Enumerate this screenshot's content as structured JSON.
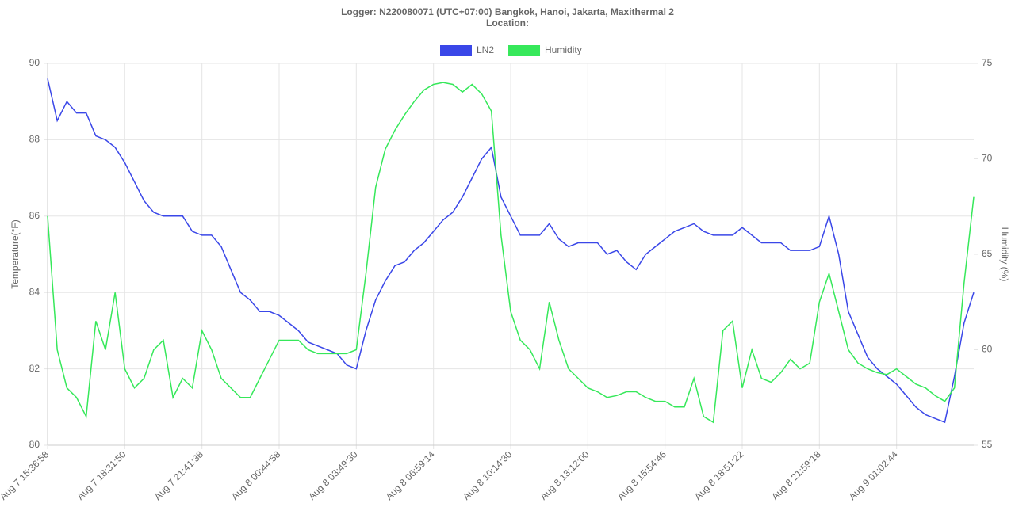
{
  "chart_data": {
    "type": "line",
    "title": "Logger: N220080071 (UTC+07:00) Bangkok, Hanoi, Jakarta, Maxithermal 2",
    "subtitle": "Location:",
    "y_label": "Temperature(°F)",
    "y2_label": "Humidity (%)",
    "categories": [
      "Aug 7 15:36:58",
      null,
      null,
      null,
      null,
      null,
      null,
      null,
      "Aug 7 18:31:50",
      null,
      null,
      null,
      null,
      null,
      null,
      null,
      "Aug 7 21:41:38",
      null,
      null,
      null,
      null,
      null,
      null,
      null,
      "Aug 8 00:44:58",
      null,
      null,
      null,
      null,
      null,
      null,
      null,
      "Aug 8 03:49:30",
      null,
      null,
      null,
      null,
      null,
      null,
      null,
      "Aug 8 06:59:14",
      null,
      null,
      null,
      null,
      null,
      null,
      null,
      "Aug 8 10:14:30",
      null,
      null,
      null,
      null,
      null,
      null,
      null,
      "Aug 8 13:12:00",
      null,
      null,
      null,
      null,
      null,
      null,
      null,
      "Aug 8 15:54:46",
      null,
      null,
      null,
      null,
      null,
      null,
      null,
      "Aug 8 18:51:22",
      null,
      null,
      null,
      null,
      null,
      null,
      null,
      "Aug 8 21:59:18",
      null,
      null,
      null,
      null,
      null,
      null,
      null,
      "Aug 9 01:02:44",
      null,
      null,
      null,
      null,
      null,
      null,
      null,
      null
    ],
    "series": [
      {
        "name": "LN2",
        "color": "#3a47e8",
        "axis": "y",
        "values": [
          89.6,
          88.5,
          89.0,
          88.7,
          88.7,
          88.1,
          88.0,
          87.8,
          87.4,
          86.9,
          86.4,
          86.1,
          86.0,
          86.0,
          86.0,
          85.6,
          85.5,
          85.5,
          85.2,
          84.6,
          84.0,
          83.8,
          83.5,
          83.5,
          83.4,
          83.2,
          83.0,
          82.7,
          82.6,
          82.5,
          82.4,
          82.1,
          82.0,
          83.0,
          83.8,
          84.3,
          84.7,
          84.8,
          85.1,
          85.3,
          85.6,
          85.9,
          86.1,
          86.5,
          87.0,
          87.5,
          87.8,
          86.5,
          86.0,
          85.5,
          85.5,
          85.5,
          85.8,
          85.4,
          85.2,
          85.3,
          85.3,
          85.3,
          85.0,
          85.1,
          84.8,
          84.6,
          85.0,
          85.2,
          85.4,
          85.6,
          85.7,
          85.8,
          85.6,
          85.5,
          85.5,
          85.5,
          85.7,
          85.5,
          85.3,
          85.3,
          85.3,
          85.1,
          85.1,
          85.1,
          85.2,
          86.0,
          85.0,
          83.5,
          82.9,
          82.3,
          82.0,
          81.8,
          81.6,
          81.3,
          81.0,
          80.8,
          80.7,
          80.6,
          81.8,
          83.2,
          84.0
        ]
      },
      {
        "name": "Humidity",
        "color": "#36e85a",
        "axis": "y2",
        "values": [
          67,
          60,
          58,
          57.5,
          56.5,
          61.5,
          60,
          63,
          59,
          58,
          58.5,
          60,
          60.5,
          57.5,
          58.5,
          58,
          61,
          60,
          58.5,
          58,
          57.5,
          57.5,
          58.5,
          59.5,
          60.5,
          60.5,
          60.5,
          60,
          59.8,
          59.8,
          59.8,
          59.8,
          60,
          64,
          68.5,
          70.5,
          71.5,
          72.3,
          73,
          73.6,
          73.9,
          74.0,
          73.9,
          73.5,
          73.9,
          73.4,
          72.5,
          66,
          62,
          60.5,
          60,
          59,
          62.5,
          60.5,
          59,
          58.5,
          58,
          57.8,
          57.5,
          57.6,
          57.8,
          57.8,
          57.5,
          57.3,
          57.3,
          57.0,
          57.0,
          58.5,
          56.5,
          56.2,
          61,
          61.5,
          58,
          60,
          58.5,
          58.3,
          58.8,
          59.5,
          59.0,
          59.3,
          62.5,
          64,
          62,
          60,
          59.3,
          59,
          58.8,
          58.7,
          59,
          58.6,
          58.2,
          58.0,
          57.6,
          57.3,
          58,
          63.5,
          68
        ]
      }
    ],
    "ylim": [
      80,
      90
    ],
    "yticks": [
      80,
      82,
      84,
      86,
      88,
      90
    ],
    "y2lim": [
      55,
      75
    ],
    "y2ticks": [
      55,
      60,
      65,
      70,
      75
    ],
    "grid": true,
    "legend": "top"
  }
}
